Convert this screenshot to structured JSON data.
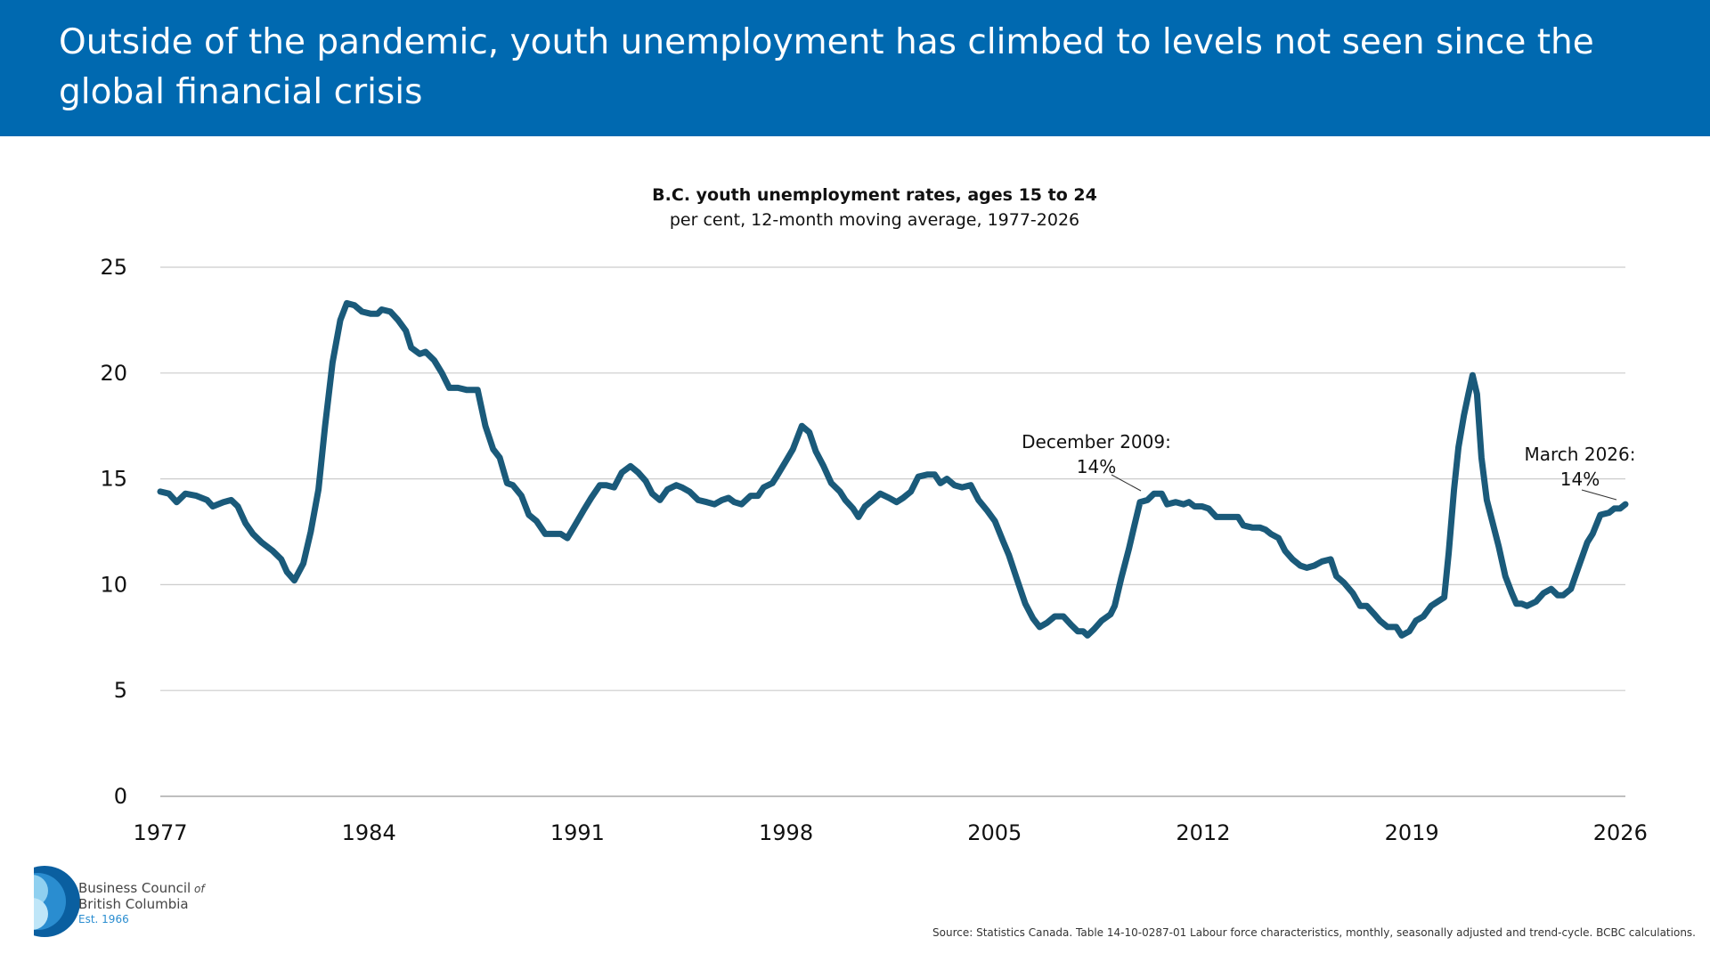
{
  "header": {
    "title": "Outside of the pandemic, youth unemployment has climbed to levels not seen since the global financial crisis"
  },
  "chart_data": {
    "type": "line",
    "title": "B.C. youth unemployment rates, ages 15 to 24",
    "subtitle": "per cent, 12-month moving average, 1977-2026",
    "x": [
      1977.0,
      1977.29,
      1977.55,
      1977.84,
      1978.21,
      1978.57,
      1978.76,
      1979.12,
      1979.38,
      1979.6,
      1979.86,
      1980.11,
      1980.4,
      1980.77,
      1981.06,
      1981.25,
      1981.5,
      1981.8,
      1982.05,
      1982.31,
      1982.53,
      1982.78,
      1983.04,
      1983.26,
      1983.52,
      1983.77,
      1984.07,
      1984.29,
      1984.43,
      1984.72,
      1984.98,
      1985.24,
      1985.42,
      1985.71,
      1985.9,
      1986.19,
      1986.45,
      1986.7,
      1986.99,
      1987.29,
      1987.65,
      1987.91,
      1988.17,
      1988.39,
      1988.64,
      1988.83,
      1989.12,
      1989.37,
      1989.63,
      1989.92,
      1990.18,
      1990.44,
      1990.66,
      1990.91,
      1991.2,
      1991.46,
      1991.75,
      1991.97,
      1992.23,
      1992.49,
      1992.78,
      1993.04,
      1993.29,
      1993.51,
      1993.77,
      1994.02,
      1994.32,
      1994.5,
      1994.76,
      1995.05,
      1995.34,
      1995.6,
      1995.85,
      1996.07,
      1996.26,
      1996.51,
      1996.81,
      1997.06,
      1997.25,
      1997.54,
      1997.68,
      1997.98,
      1998.23,
      1998.53,
      1998.78,
      1999.0,
      1999.26,
      1999.52,
      1999.81,
      1999.99,
      2000.25,
      2000.43,
      2000.65,
      2000.91,
      2001.16,
      2001.46,
      2001.71,
      2001.93,
      2002.19,
      2002.44,
      2002.74,
      2002.99,
      2003.18,
      2003.4,
      2003.65,
      2003.91,
      2004.2,
      2004.46,
      2004.75,
      2005.01,
      2005.3,
      2005.48,
      2005.74,
      2006.03,
      2006.29,
      2006.51,
      2006.76,
      2007.02,
      2007.31,
      2007.57,
      2007.79,
      2007.97,
      2008.12,
      2008.34,
      2008.59,
      2008.89,
      2009.03,
      2009.25,
      2009.51,
      2009.69,
      2009.88,
      2010.13,
      2010.35,
      2010.61,
      2010.79,
      2011.08,
      2011.34,
      2011.52,
      2011.71,
      2011.96,
      2012.18,
      2012.44,
      2012.69,
      2012.91,
      2013.17,
      2013.35,
      2013.65,
      2013.9,
      2014.09,
      2014.27,
      2014.53,
      2014.75,
      2015.0,
      2015.26,
      2015.48,
      2015.73,
      2015.99,
      2016.28,
      2016.47,
      2016.72,
      2017.02,
      2017.27,
      2017.49,
      2017.75,
      2017.93,
      2018.19,
      2018.48,
      2018.66,
      2018.92,
      2019.14,
      2019.39,
      2019.65,
      2019.87,
      2020.09,
      2020.24,
      2020.42,
      2020.57,
      2020.75,
      2020.9,
      2021.04,
      2021.19,
      2021.34,
      2021.52,
      2021.7,
      2021.92,
      2022.14,
      2022.36,
      2022.51,
      2022.69,
      2022.87,
      2023.17,
      2023.42,
      2023.68,
      2023.9,
      2024.08,
      2024.34,
      2024.59,
      2024.89,
      2025.07,
      2025.33,
      2025.62,
      2025.8,
      2025.99,
      2026.17
    ],
    "series": [
      {
        "color": "#1a5a7a",
        "values": [
          14.4,
          14.3,
          13.9,
          14.3,
          14.2,
          14.0,
          13.7,
          13.9,
          14.0,
          13.7,
          12.9,
          12.4,
          12.0,
          11.6,
          11.2,
          10.6,
          10.2,
          11.0,
          12.5,
          14.5,
          17.5,
          20.5,
          22.5,
          23.3,
          23.2,
          22.9,
          22.8,
          22.8,
          23.0,
          22.9,
          22.5,
          22.0,
          21.2,
          20.9,
          21.0,
          20.6,
          20.0,
          19.3,
          19.3,
          19.2,
          19.2,
          17.5,
          16.4,
          16.0,
          14.8,
          14.7,
          14.2,
          13.3,
          13.0,
          12.4,
          12.4,
          12.4,
          12.2,
          12.8,
          13.5,
          14.1,
          14.7,
          14.7,
          14.6,
          15.3,
          15.6,
          15.3,
          14.9,
          14.3,
          14.0,
          14.5,
          14.7,
          14.6,
          14.4,
          14.0,
          13.9,
          13.8,
          14.0,
          14.1,
          13.9,
          13.8,
          14.2,
          14.2,
          14.6,
          14.8,
          15.1,
          15.8,
          16.4,
          17.5,
          17.2,
          16.3,
          15.6,
          14.8,
          14.4,
          14.0,
          13.6,
          13.2,
          13.7,
          14.0,
          14.3,
          14.1,
          13.9,
          14.1,
          14.4,
          15.1,
          15.2,
          15.2,
          14.8,
          15.0,
          14.7,
          14.6,
          14.7,
          14.0,
          13.5,
          13.0,
          12.0,
          11.4,
          10.3,
          9.1,
          8.4,
          8.0,
          8.2,
          8.5,
          8.5,
          8.1,
          7.8,
          7.8,
          7.6,
          7.9,
          8.3,
          8.6,
          9.0,
          10.3,
          11.7,
          12.8,
          13.9,
          14.0,
          14.3,
          14.3,
          13.8,
          13.9,
          13.8,
          13.9,
          13.7,
          13.7,
          13.6,
          13.2,
          13.2,
          13.2,
          13.2,
          12.8,
          12.7,
          12.7,
          12.6,
          12.4,
          12.2,
          11.6,
          11.2,
          10.9,
          10.8,
          10.9,
          11.1,
          11.2,
          10.4,
          10.1,
          9.6,
          9.0,
          9.0,
          8.6,
          8.3,
          8.0,
          8.0,
          7.6,
          7.8,
          8.3,
          8.5,
          9.0,
          9.2,
          9.4,
          11.5,
          14.5,
          16.5,
          18.0,
          19.0,
          19.9,
          19.0,
          16.0,
          14.0,
          13.0,
          11.8,
          10.4,
          9.6,
          9.1,
          9.1,
          9.0,
          9.2,
          9.6,
          9.8,
          9.5,
          9.5,
          9.8,
          10.8,
          12.0,
          12.4,
          13.3,
          13.4,
          13.6,
          13.6,
          13.8
        ]
      }
    ],
    "xlim": [
      1977,
      2026.17
    ],
    "xticks": [
      1977,
      1984,
      1991,
      1998,
      2005,
      2012,
      2019,
      2026
    ],
    "ylim": [
      0,
      25
    ],
    "yticks": [
      0,
      5,
      10,
      15,
      20,
      25
    ],
    "grid": true,
    "annotations": [
      {
        "text": [
          "December 2009:",
          "14%"
        ]
      },
      {
        "text": [
          "March 2026:",
          "14%"
        ]
      }
    ]
  },
  "logo": {
    "line1": "Business Council",
    "of": "of",
    "line2": "British Columbia",
    "est": "Est. 1966"
  },
  "source": "Source: Statistics Canada. Table 14-10-0287-01 Labour force characteristics, monthly, seasonally adjusted and trend-cycle. BCBC calculations."
}
